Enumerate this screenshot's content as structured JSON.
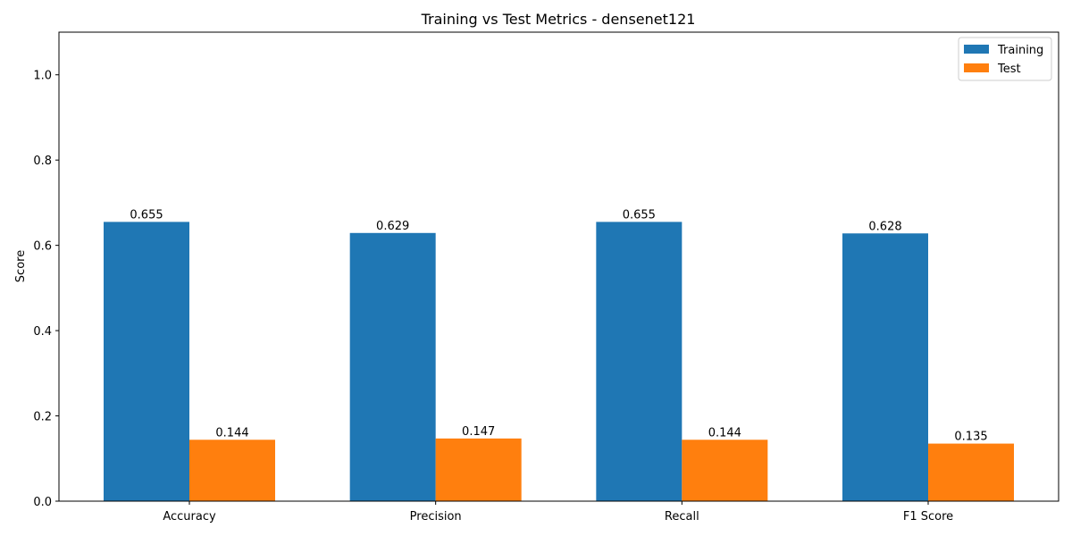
{
  "chart_data": {
    "type": "bar",
    "title": "Training vs Test Metrics - densenet121",
    "xlabel": "",
    "ylabel": "Score",
    "ylim": [
      0,
      1.1
    ],
    "yticks": [
      0.0,
      0.2,
      0.4,
      0.6,
      0.8,
      1.0
    ],
    "ytick_labels": [
      "0.0",
      "0.2",
      "0.4",
      "0.6",
      "0.8",
      "1.0"
    ],
    "categories": [
      "Accuracy",
      "Precision",
      "Recall",
      "F1 Score"
    ],
    "series": [
      {
        "name": "Training",
        "color": "#1f77b4",
        "values": [
          0.655,
          0.629,
          0.655,
          0.628
        ],
        "labels": [
          "0.655",
          "0.629",
          "0.655",
          "0.628"
        ]
      },
      {
        "name": "Test",
        "color": "#ff7f0e",
        "values": [
          0.144,
          0.147,
          0.144,
          0.135
        ],
        "labels": [
          "0.144",
          "0.147",
          "0.144",
          "0.135"
        ]
      }
    ],
    "grid": false,
    "legend_position": "top-right"
  }
}
